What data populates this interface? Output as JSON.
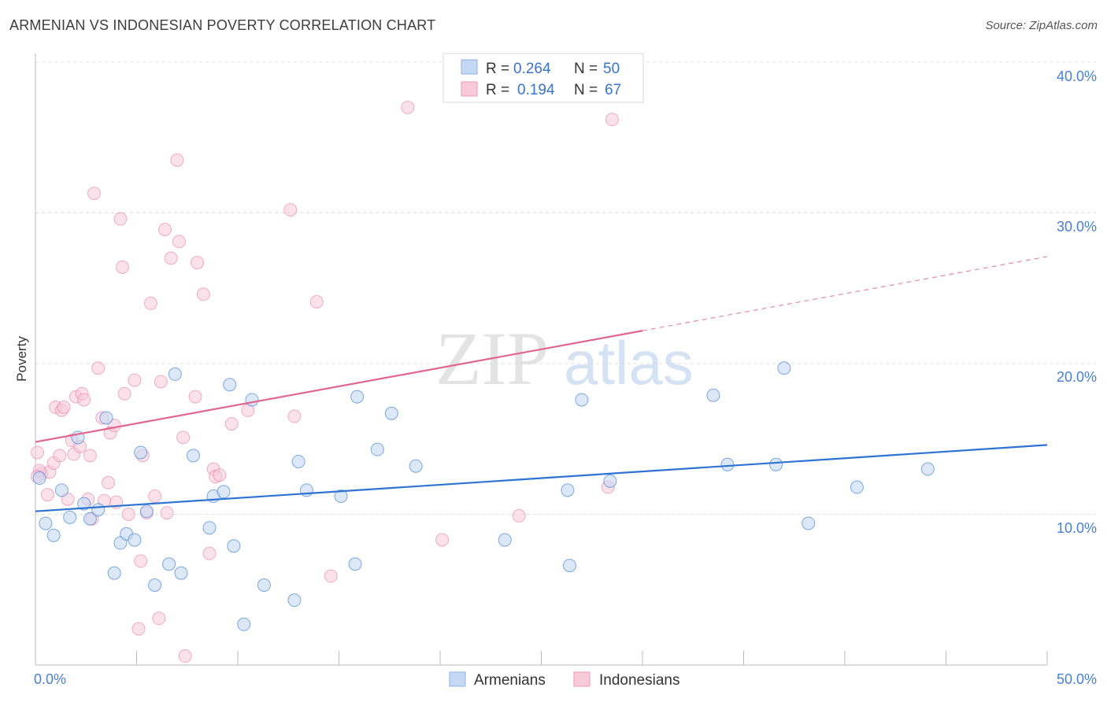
{
  "title": "ARMENIAN VS INDONESIAN POVERTY CORRELATION CHART",
  "source": "Source: ZipAtlas.com",
  "colors": {
    "armenians": "#4a86d4",
    "armenians_fill": "#c5d8f3",
    "indonesians": "#e4739a",
    "indonesians_fill": "#f8c9d8",
    "tick_text": "#4a7fd0"
  },
  "legend": {
    "rows": [
      {
        "r_label": "R =",
        "r_value": "0.264",
        "n_label": "N =",
        "n_value": "50"
      },
      {
        "r_label": "R =",
        "r_value": "0.194",
        "n_label": "N =",
        "n_value": "67"
      }
    ]
  },
  "bottom_legend": [
    "Armenians",
    "Indonesians"
  ],
  "watermark": {
    "zip": "ZIP",
    "atlas": "atlas"
  },
  "chart_data": {
    "type": "scatter",
    "title": "ARMENIAN VS INDONESIAN POVERTY CORRELATION CHART",
    "xlabel": "",
    "ylabel": "Poverty",
    "xlim": [
      0,
      50
    ],
    "ylim": [
      0,
      40
    ],
    "x_tick_labels": [
      "0.0%",
      "50.0%"
    ],
    "y_ticks": [
      10,
      20,
      30,
      40
    ],
    "y_tick_labels": [
      "10.0%",
      "20.0%",
      "30.0%",
      "40.0%"
    ],
    "grid": true,
    "legend_position": "top-center",
    "series": [
      {
        "name": "Armenians",
        "r": 0.264,
        "n": 50,
        "trend": {
          "x": [
            0,
            50
          ],
          "y": [
            10.2,
            14.6
          ],
          "solid_to": 50
        },
        "points": [
          [
            0.2,
            12.4
          ],
          [
            0.5,
            9.4
          ],
          [
            0.9,
            8.6
          ],
          [
            1.3,
            11.6
          ],
          [
            1.7,
            9.8
          ],
          [
            2.1,
            15.1
          ],
          [
            2.4,
            10.7
          ],
          [
            2.7,
            9.7
          ],
          [
            3.1,
            10.3
          ],
          [
            3.5,
            16.4
          ],
          [
            3.9,
            6.1
          ],
          [
            4.2,
            8.1
          ],
          [
            4.5,
            8.7
          ],
          [
            4.9,
            8.3
          ],
          [
            5.2,
            14.1
          ],
          [
            5.5,
            10.2
          ],
          [
            5.9,
            5.3
          ],
          [
            6.6,
            6.7
          ],
          [
            6.9,
            19.3
          ],
          [
            7.2,
            6.1
          ],
          [
            7.8,
            13.9
          ],
          [
            8.6,
            9.1
          ],
          [
            8.8,
            11.2
          ],
          [
            9.3,
            11.5
          ],
          [
            9.6,
            18.6
          ],
          [
            9.8,
            7.9
          ],
          [
            10.3,
            2.7
          ],
          [
            10.7,
            17.6
          ],
          [
            11.3,
            5.3
          ],
          [
            12.8,
            4.3
          ],
          [
            13.0,
            13.5
          ],
          [
            13.4,
            11.6
          ],
          [
            15.1,
            11.2
          ],
          [
            15.8,
            6.7
          ],
          [
            15.9,
            17.8
          ],
          [
            16.9,
            14.3
          ],
          [
            17.6,
            16.7
          ],
          [
            18.8,
            13.2
          ],
          [
            23.2,
            8.3
          ],
          [
            26.3,
            11.6
          ],
          [
            26.4,
            6.6
          ],
          [
            27.0,
            17.6
          ],
          [
            28.4,
            12.2
          ],
          [
            33.5,
            17.9
          ],
          [
            34.2,
            13.3
          ],
          [
            36.6,
            13.3
          ],
          [
            37.0,
            19.7
          ],
          [
            38.2,
            9.4
          ],
          [
            40.6,
            11.8
          ],
          [
            44.1,
            13.0
          ]
        ]
      },
      {
        "name": "Indonesians",
        "r": 0.194,
        "n": 67,
        "trend": {
          "x": [
            0,
            50
          ],
          "y": [
            14.8,
            27.1
          ],
          "solid_to": 30
        }
      }
    ],
    "points_indonesians": [
      [
        0.1,
        14.1
      ],
      [
        0.3,
        12.7
      ],
      [
        0.6,
        11.3
      ],
      [
        0.7,
        12.8
      ],
      [
        0.9,
        13.4
      ],
      [
        1.0,
        17.1
      ],
      [
        1.2,
        13.9
      ],
      [
        1.3,
        16.9
      ],
      [
        1.4,
        17.1
      ],
      [
        1.6,
        11.0
      ],
      [
        1.8,
        14.9
      ],
      [
        1.9,
        14.0
      ],
      [
        2.0,
        17.8
      ],
      [
        2.2,
        14.5
      ],
      [
        2.3,
        18.0
      ],
      [
        2.4,
        17.6
      ],
      [
        2.6,
        11.0
      ],
      [
        2.7,
        13.9
      ],
      [
        2.8,
        9.7
      ],
      [
        2.9,
        31.3
      ],
      [
        3.1,
        19.7
      ],
      [
        3.3,
        16.4
      ],
      [
        3.4,
        10.9
      ],
      [
        3.6,
        12.1
      ],
      [
        3.7,
        15.4
      ],
      [
        3.9,
        15.9
      ],
      [
        4.0,
        10.8
      ],
      [
        4.2,
        29.6
      ],
      [
        4.3,
        26.4
      ],
      [
        4.4,
        18.0
      ],
      [
        4.6,
        10.0
      ],
      [
        4.9,
        18.9
      ],
      [
        5.1,
        2.4
      ],
      [
        5.2,
        6.9
      ],
      [
        5.3,
        13.9
      ],
      [
        5.5,
        10.1
      ],
      [
        5.7,
        24.0
      ],
      [
        5.9,
        11.2
      ],
      [
        6.1,
        3.1
      ],
      [
        6.2,
        18.8
      ],
      [
        6.4,
        28.9
      ],
      [
        6.5,
        10.1
      ],
      [
        6.7,
        27.0
      ],
      [
        7.0,
        33.5
      ],
      [
        7.1,
        28.1
      ],
      [
        7.3,
        15.1
      ],
      [
        7.4,
        0.6
      ],
      [
        7.9,
        17.8
      ],
      [
        8.0,
        26.7
      ],
      [
        8.3,
        24.6
      ],
      [
        8.6,
        7.4
      ],
      [
        8.8,
        13.0
      ],
      [
        8.9,
        12.5
      ],
      [
        9.1,
        12.6
      ],
      [
        9.7,
        16.0
      ],
      [
        10.5,
        16.9
      ],
      [
        12.6,
        30.2
      ],
      [
        12.8,
        16.5
      ],
      [
        13.9,
        24.1
      ],
      [
        14.6,
        5.9
      ],
      [
        18.4,
        37.0
      ],
      [
        20.1,
        8.3
      ],
      [
        23.9,
        9.9
      ],
      [
        28.3,
        11.8
      ],
      [
        28.5,
        36.2
      ],
      [
        0.2,
        12.9
      ],
      [
        0.1,
        12.5
      ]
    ]
  }
}
